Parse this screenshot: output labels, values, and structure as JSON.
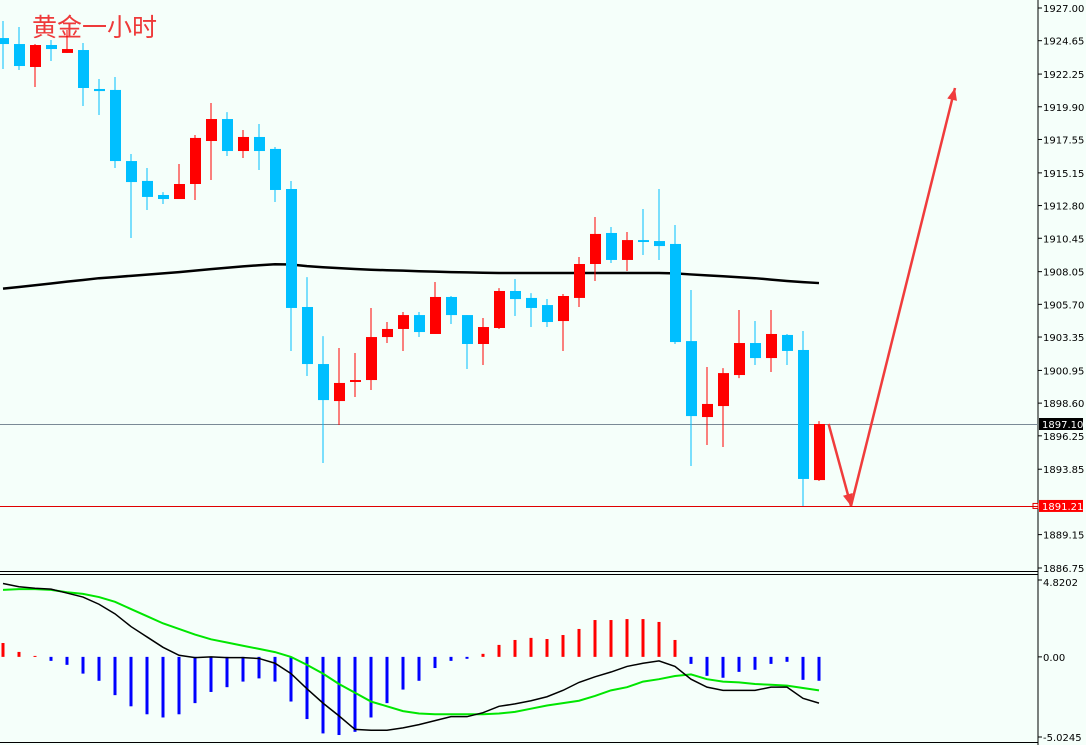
{
  "title": "黄金一小时",
  "colors": {
    "bull": "#ff0000",
    "bear": "#00bfff",
    "ma": "#000000",
    "macd": "#000000",
    "signal": "#00e600",
    "hist_pos": "#ff0000",
    "hist_neg": "#0000ff",
    "arrow": "#f03c3c",
    "bg": "#f5fffa"
  },
  "chart_data": [
    {
      "type": "candlestick",
      "title": "黄金一小时",
      "ylim": [
        1886.75,
        1927.0
      ],
      "y_ticks": [
        "1927.00",
        "1924.65",
        "1922.25",
        "1919.90",
        "1917.55",
        "1915.15",
        "1912.80",
        "1910.45",
        "1908.05",
        "1905.70",
        "1903.35",
        "1900.95",
        "1898.60",
        "1896.25",
        "1893.85",
        "1889.15",
        "1886.75"
      ],
      "grid": false,
      "ohlc_fields": [
        "open",
        "high",
        "low",
        "close"
      ],
      "candles": [
        [
          1924.84,
          1926.07,
          1922.62,
          1924.41
        ],
        [
          1924.41,
          1925.63,
          1922.54,
          1922.83
        ],
        [
          1922.76,
          1924.41,
          1921.32,
          1924.34
        ],
        [
          1924.34,
          1924.7,
          1923.19,
          1924.05
        ],
        [
          1923.77,
          1925.42,
          1923.77,
          1924.05
        ],
        [
          1923.98,
          1924.48,
          1919.96,
          1921.25
        ],
        [
          1921.18,
          1921.9,
          1919.31,
          1921.03
        ],
        [
          1921.11,
          1922.04,
          1915.5,
          1916.0
        ],
        [
          1916.0,
          1916.51,
          1910.47,
          1914.49
        ],
        [
          1914.57,
          1915.5,
          1912.48,
          1913.42
        ],
        [
          1913.56,
          1913.77,
          1912.91,
          1913.27
        ],
        [
          1913.27,
          1915.79,
          1913.27,
          1914.35
        ],
        [
          1914.35,
          1917.87,
          1913.2,
          1917.66
        ],
        [
          1917.44,
          1920.17,
          1914.64,
          1919.02
        ],
        [
          1919.02,
          1919.52,
          1916.36,
          1916.72
        ],
        [
          1916.72,
          1918.23,
          1916.22,
          1917.73
        ],
        [
          1917.73,
          1918.66,
          1915.36,
          1916.72
        ],
        [
          1916.87,
          1917.01,
          1913.06,
          1913.92
        ],
        [
          1913.99,
          1914.57,
          1902.35,
          1905.44
        ],
        [
          1905.51,
          1907.66,
          1900.55,
          1901.41
        ],
        [
          1901.41,
          1903.42,
          1894.3,
          1898.82
        ],
        [
          1898.75,
          1902.56,
          1897.03,
          1900.05
        ],
        [
          1900.12,
          1902.2,
          1899.04,
          1900.26
        ],
        [
          1900.26,
          1905.44,
          1899.54,
          1903.35
        ],
        [
          1903.35,
          1904.43,
          1902.92,
          1903.93
        ],
        [
          1903.93,
          1905.15,
          1902.35,
          1904.93
        ],
        [
          1904.93,
          1905.15,
          1903.35,
          1903.71
        ],
        [
          1903.57,
          1907.31,
          1903.57,
          1906.23
        ],
        [
          1906.23,
          1906.3,
          1904.29,
          1904.93
        ],
        [
          1904.93,
          1904.93,
          1901.05,
          1902.85
        ],
        [
          1902.85,
          1904.72,
          1901.34,
          1904.07
        ],
        [
          1904.0,
          1906.87,
          1903.93,
          1906.66
        ],
        [
          1906.66,
          1907.52,
          1904.86,
          1906.08
        ],
        [
          1906.16,
          1906.51,
          1904.07,
          1905.44
        ],
        [
          1905.65,
          1906.08,
          1904.07,
          1904.43
        ],
        [
          1904.5,
          1906.44,
          1902.35,
          1906.3
        ],
        [
          1906.16,
          1909.1,
          1905.51,
          1908.6
        ],
        [
          1908.6,
          1911.98,
          1907.38,
          1910.76
        ],
        [
          1910.83,
          1911.26,
          1908.67,
          1908.89
        ],
        [
          1908.89,
          1910.9,
          1908.1,
          1910.32
        ],
        [
          1910.32,
          1912.55,
          1909.25,
          1910.18
        ],
        [
          1910.25,
          1913.99,
          1908.89,
          1909.89
        ],
        [
          1910.04,
          1911.4,
          1902.85,
          1902.99
        ],
        [
          1903.06,
          1906.73,
          1894.08,
          1897.67
        ],
        [
          1897.6,
          1901.2,
          1895.59,
          1898.54
        ],
        [
          1898.39,
          1901.12,
          1895.45,
          1900.76
        ],
        [
          1900.62,
          1905.29,
          1900.4,
          1902.92
        ],
        [
          1902.92,
          1904.5,
          1901.34,
          1901.84
        ],
        [
          1901.84,
          1905.29,
          1900.84,
          1903.57
        ],
        [
          1903.5,
          1903.57,
          1901.34,
          1902.35
        ],
        [
          1902.42,
          1903.78,
          1891.21,
          1893.15
        ],
        [
          1893.07,
          1897.31,
          1893.0,
          1897.1
        ]
      ],
      "moving_average": [
        1906.83,
        1906.95,
        1907.07,
        1907.2,
        1907.33,
        1907.45,
        1907.58,
        1907.66,
        1907.75,
        1907.84,
        1907.93,
        1908.02,
        1908.12,
        1908.23,
        1908.33,
        1908.43,
        1908.51,
        1908.58,
        1908.56,
        1908.45,
        1908.37,
        1908.3,
        1908.24,
        1908.19,
        1908.15,
        1908.12,
        1908.08,
        1908.05,
        1908.02,
        1908.0,
        1907.97,
        1907.95,
        1907.95,
        1907.95,
        1907.95,
        1907.95,
        1907.95,
        1907.95,
        1907.95,
        1907.95,
        1907.95,
        1907.95,
        1907.93,
        1907.85,
        1907.78,
        1907.72,
        1907.65,
        1907.58,
        1907.48,
        1907.38,
        1907.3,
        1907.23
      ],
      "price_lines": [
        {
          "label": "1897.10",
          "value": 1897.1,
          "style": "gray",
          "label_bg": "#000000"
        },
        {
          "label": "1891.21",
          "value": 1891.21,
          "style": "red",
          "label_bg": "#ff0000"
        }
      ],
      "annotation_arrows": [
        {
          "from": [
            51.6,
            1897.1
          ],
          "to": [
            53.0,
            1891.21
          ]
        },
        {
          "from": [
            53.0,
            1891.21
          ],
          "to": [
            59.5,
            1921.25
          ]
        }
      ]
    },
    {
      "type": "macd",
      "ylim": [
        -5.0245,
        4.8202
      ],
      "y_ticks": [
        "4.8202",
        "0.00",
        "-5.0245"
      ],
      "histogram": [
        0.87,
        0.31,
        0.06,
        -0.25,
        -0.5,
        -1.05,
        -1.5,
        -2.4,
        -3.1,
        -3.6,
        -3.8,
        -3.6,
        -2.9,
        -2.2,
        -1.9,
        -1.55,
        -1.35,
        -1.55,
        -2.8,
        -3.9,
        -4.8,
        -4.9,
        -4.7,
        -3.8,
        -2.9,
        -2.05,
        -1.5,
        -0.7,
        -0.25,
        -0.12,
        0.19,
        0.75,
        1.06,
        1.19,
        1.12,
        1.37,
        1.75,
        2.31,
        2.31,
        2.37,
        2.37,
        2.19,
        1.06,
        -0.44,
        -1.19,
        -1.31,
        -0.94,
        -0.81,
        -0.44,
        -0.31,
        -1.44,
        -1.5
      ],
      "macd": [
        4.6,
        4.4,
        4.3,
        4.25,
        4.0,
        3.75,
        3.3,
        2.7,
        1.9,
        1.25,
        0.6,
        0.1,
        -0.05,
        0,
        -0.05,
        -0.05,
        -0.1,
        -0.4,
        -1.05,
        -2.0,
        -2.9,
        -3.7,
        -4.55,
        -4.6,
        -4.6,
        -4.45,
        -4.25,
        -4.0,
        -3.75,
        -3.75,
        -3.5,
        -3.1,
        -2.95,
        -2.75,
        -2.5,
        -2.1,
        -1.6,
        -1.25,
        -0.95,
        -0.6,
        -0.4,
        -0.25,
        -0.6,
        -1.4,
        -1.9,
        -2.1,
        -2.1,
        -2.1,
        -1.9,
        -1.9,
        -2.6,
        -2.9
      ],
      "signal": [
        4.2,
        4.25,
        4.25,
        4.2,
        4.05,
        3.95,
        3.75,
        3.45,
        3.0,
        2.55,
        2.1,
        1.75,
        1.4,
        1.1,
        0.9,
        0.7,
        0.5,
        0.3,
        0,
        -0.5,
        -1.05,
        -1.7,
        -2.25,
        -2.8,
        -3.1,
        -3.4,
        -3.55,
        -3.6,
        -3.6,
        -3.6,
        -3.6,
        -3.55,
        -3.45,
        -3.25,
        -3.05,
        -2.9,
        -2.75,
        -2.45,
        -2.1,
        -1.9,
        -1.55,
        -1.4,
        -1.2,
        -1.1,
        -1.4,
        -1.55,
        -1.6,
        -1.7,
        -1.75,
        -1.8,
        -1.95,
        -2.1
      ]
    }
  ]
}
